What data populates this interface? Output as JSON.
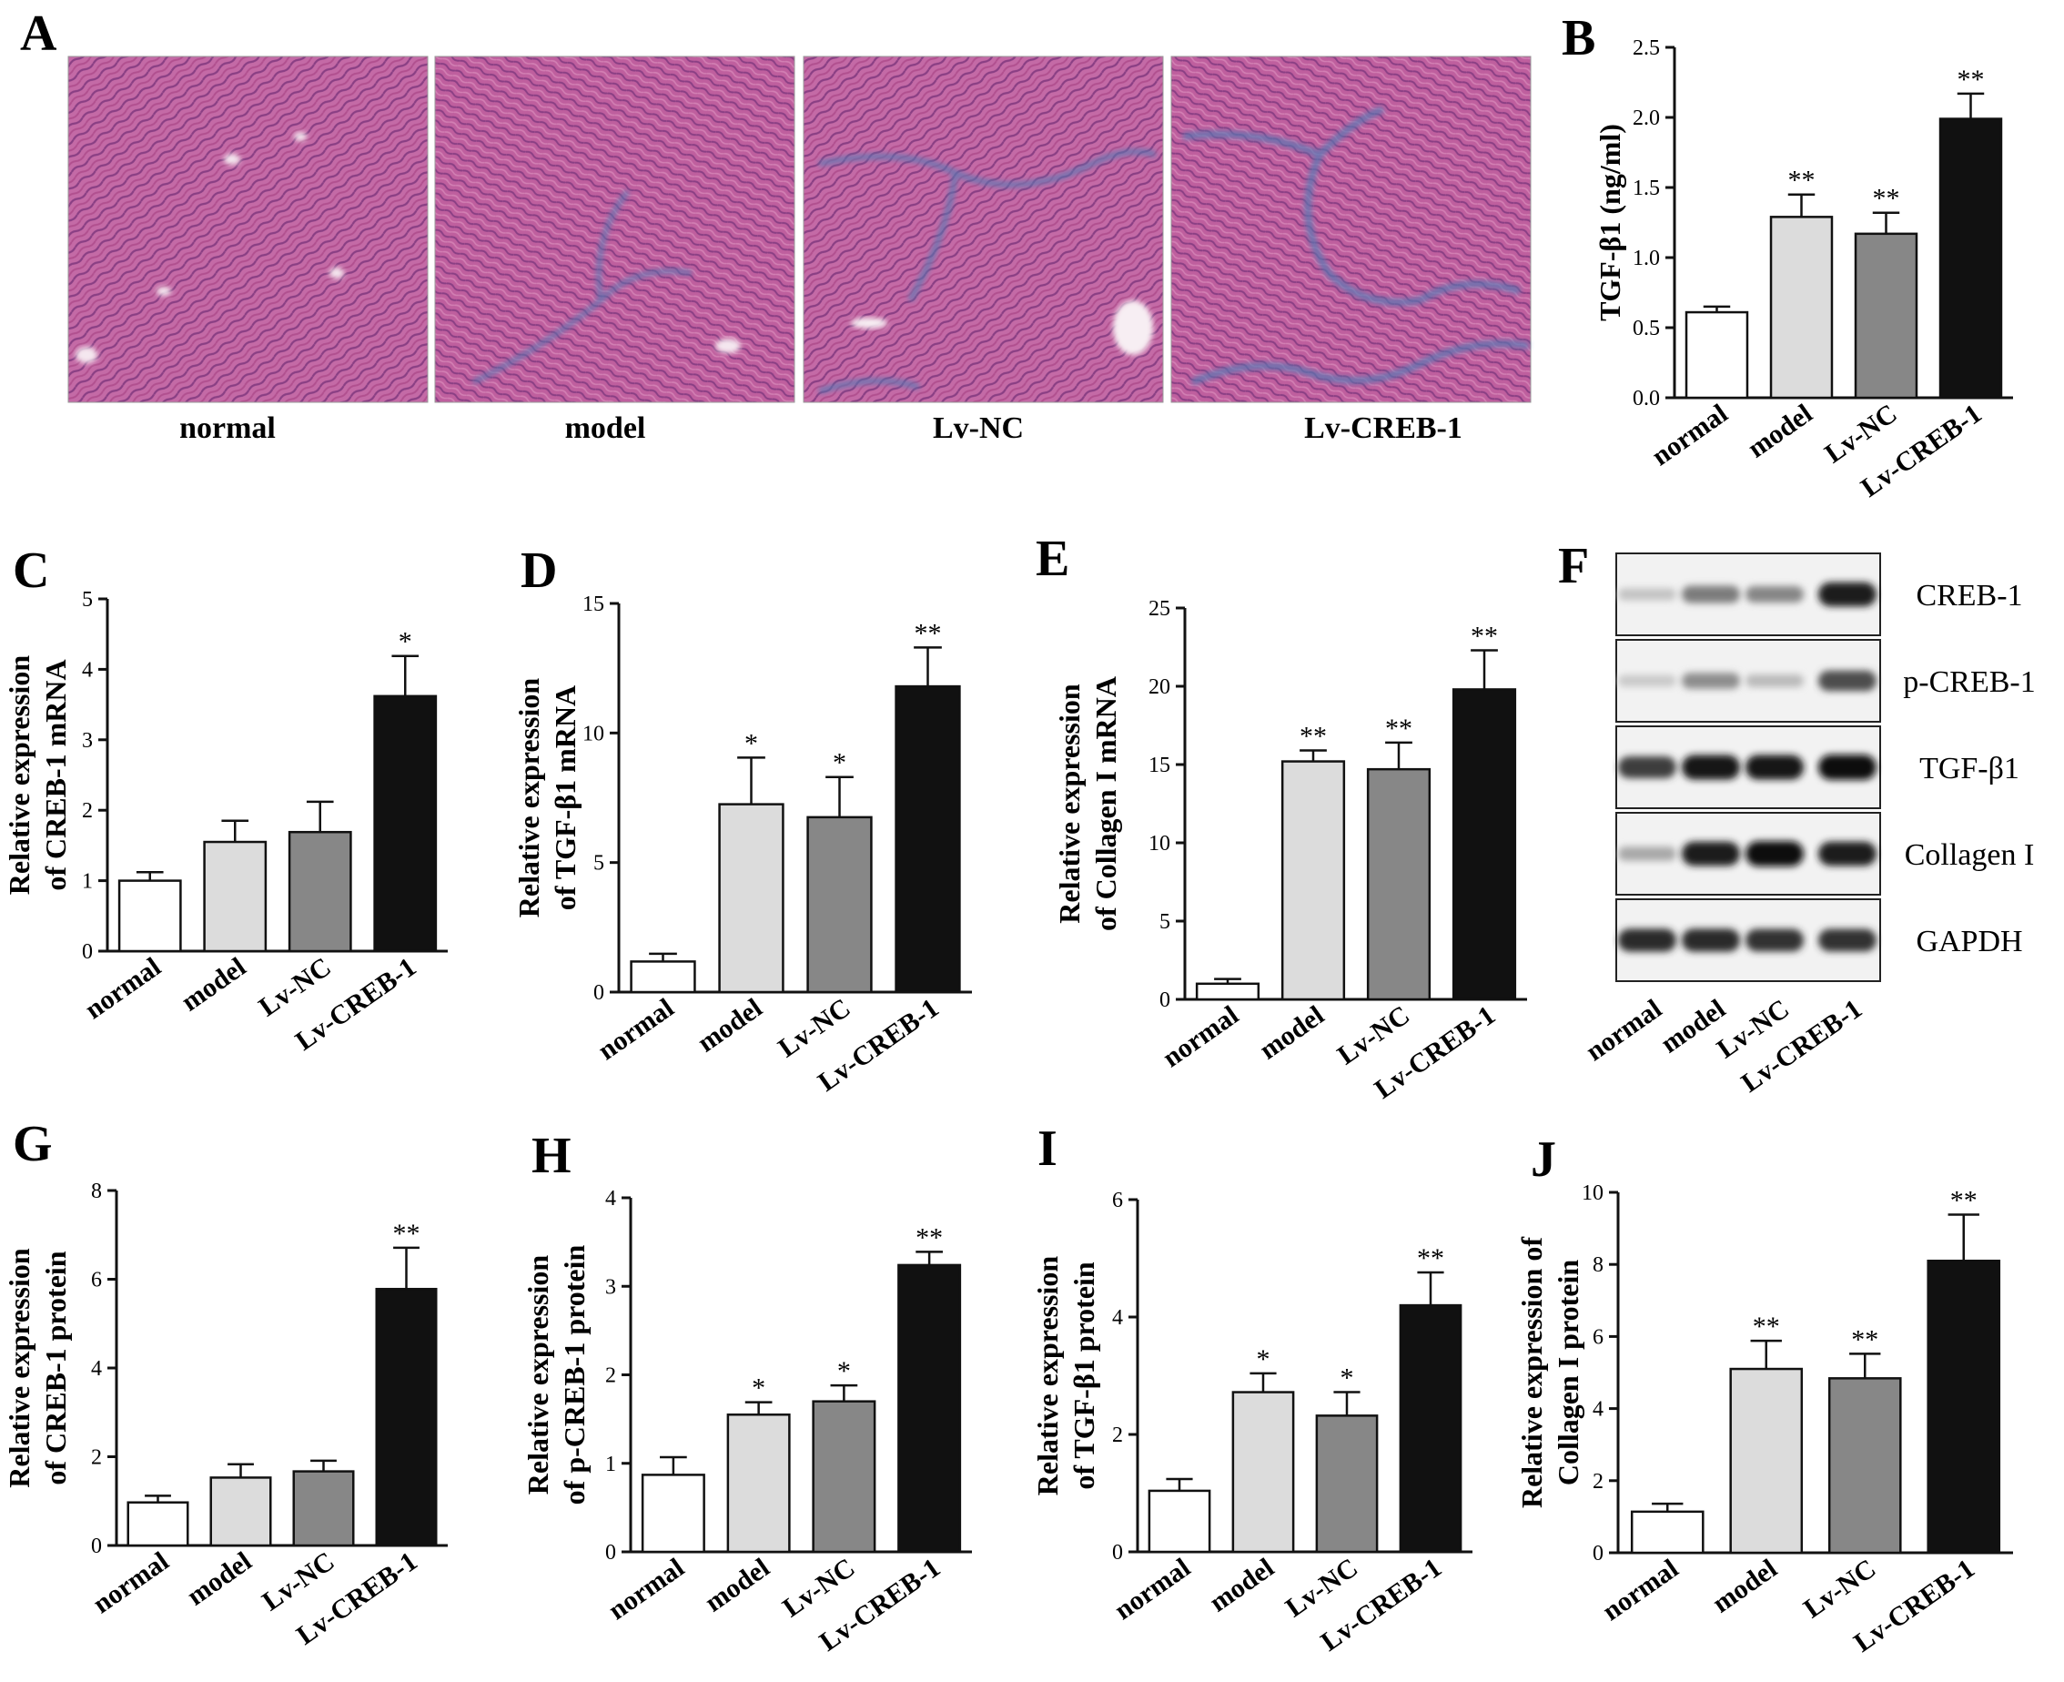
{
  "group_labels": [
    "normal",
    "model",
    "Lv-NC",
    "Lv-CREB-1"
  ],
  "bar_colors": [
    "#ffffff",
    "#dcdcdc",
    "#878787",
    "#111111"
  ],
  "micrographs": {
    "panel": "A",
    "stain_colors": {
      "tissue": "#b1508f",
      "tissue_dark": "#8a3f84",
      "background": "#c96aa5",
      "fibrosis": "#5a78b4"
    },
    "fibrosis_level": [
      0.0,
      0.35,
      0.45,
      0.8
    ]
  },
  "western_blot": {
    "panel": "F",
    "rows": [
      {
        "label": "CREB-1",
        "intensity": [
          0.18,
          0.5,
          0.45,
          0.92
        ]
      },
      {
        "label": "p-CREB-1",
        "intensity": [
          0.15,
          0.42,
          0.22,
          0.7
        ]
      },
      {
        "label": "TGF-β1",
        "intensity": [
          0.78,
          0.95,
          0.95,
          0.99
        ]
      },
      {
        "label": "Collagen I",
        "intensity": [
          0.3,
          0.92,
          0.98,
          0.92
        ]
      },
      {
        "label": "GAPDH",
        "intensity": [
          0.85,
          0.85,
          0.82,
          0.82
        ]
      }
    ]
  },
  "chart_data": [
    {
      "panel": "B",
      "type": "bar",
      "ylabel": "TGF-β1 (ng/ml)",
      "ylim": [
        0,
        2.5
      ],
      "yticks": [
        "0.0",
        "0.5",
        "1.0",
        "1.5",
        "2.0",
        "2.5"
      ],
      "categories": [
        "normal",
        "model",
        "Lv-NC",
        "Lv-CREB-1"
      ],
      "values": [
        0.61,
        1.29,
        1.17,
        1.99
      ],
      "errors": [
        0.04,
        0.16,
        0.15,
        0.18
      ],
      "significance": [
        "",
        "**",
        "**",
        "**"
      ]
    },
    {
      "panel": "C",
      "type": "bar",
      "ylabel": [
        "Relative expression",
        "of CREB-1 mRNA"
      ],
      "ylim": [
        0,
        5
      ],
      "yticks": [
        "0",
        "1",
        "2",
        "3",
        "4",
        "5"
      ],
      "categories": [
        "normal",
        "model",
        "Lv-NC",
        "Lv-CREB-1"
      ],
      "values": [
        1.0,
        1.55,
        1.69,
        3.62
      ],
      "errors": [
        0.12,
        0.3,
        0.43,
        0.57
      ],
      "significance": [
        "",
        "",
        "",
        "*"
      ]
    },
    {
      "panel": "D",
      "type": "bar",
      "ylabel": [
        "Relative expression",
        "of TGF-β1 mRNA"
      ],
      "ylim": [
        0,
        15
      ],
      "yticks": [
        "0",
        "5",
        "10",
        "15"
      ],
      "categories": [
        "normal",
        "model",
        "Lv-NC",
        "Lv-CREB-1"
      ],
      "values": [
        1.18,
        7.25,
        6.75,
        11.8
      ],
      "errors": [
        0.3,
        1.8,
        1.55,
        1.5
      ],
      "significance": [
        "",
        "*",
        "*",
        "**"
      ]
    },
    {
      "panel": "E",
      "type": "bar",
      "ylabel": [
        "Relative expression",
        "of Collagen I mRNA"
      ],
      "ylim": [
        0,
        25
      ],
      "yticks": [
        "0",
        "5",
        "10",
        "15",
        "20",
        "25"
      ],
      "categories": [
        "normal",
        "model",
        "Lv-NC",
        "Lv-CREB-1"
      ],
      "values": [
        1.0,
        15.2,
        14.7,
        19.8
      ],
      "errors": [
        0.3,
        0.7,
        1.7,
        2.5
      ],
      "significance": [
        "",
        "**",
        "**",
        "**"
      ]
    },
    {
      "panel": "G",
      "type": "bar",
      "ylabel": [
        "Relative expression",
        "of CREB-1 protein"
      ],
      "ylim": [
        0,
        8
      ],
      "yticks": [
        "0",
        "2",
        "4",
        "6",
        "8"
      ],
      "categories": [
        "normal",
        "model",
        "Lv-NC",
        "Lv-CREB-1"
      ],
      "values": [
        0.97,
        1.53,
        1.67,
        5.78
      ],
      "errors": [
        0.15,
        0.3,
        0.24,
        0.93
      ],
      "significance": [
        "",
        "",
        "",
        "**"
      ]
    },
    {
      "panel": "H",
      "type": "bar",
      "ylabel": [
        "Relative expression",
        "of p-CREB-1 protein"
      ],
      "ylim": [
        0,
        4
      ],
      "yticks": [
        "0",
        "1",
        "2",
        "3",
        "4"
      ],
      "categories": [
        "normal",
        "model",
        "Lv-NC",
        "Lv-CREB-1"
      ],
      "values": [
        0.87,
        1.55,
        1.7,
        3.24
      ],
      "errors": [
        0.2,
        0.14,
        0.18,
        0.15
      ],
      "significance": [
        "",
        "*",
        "*",
        "**"
      ]
    },
    {
      "panel": "I",
      "type": "bar",
      "ylabel": [
        "Relative expression",
        "of TGF-β1 protein"
      ],
      "ylim": [
        0,
        6
      ],
      "yticks": [
        "0",
        "2",
        "4",
        "6"
      ],
      "categories": [
        "normal",
        "model",
        "Lv-NC",
        "Lv-CREB-1"
      ],
      "values": [
        1.04,
        2.72,
        2.32,
        4.2
      ],
      "errors": [
        0.2,
        0.32,
        0.4,
        0.56
      ],
      "significance": [
        "",
        "*",
        "*",
        "**"
      ]
    },
    {
      "panel": "J",
      "type": "bar",
      "ylabel": [
        "Relative expression of",
        "Collagen I protein"
      ],
      "ylim": [
        0,
        10
      ],
      "yticks": [
        "0",
        "2",
        "4",
        "6",
        "8",
        "10"
      ],
      "categories": [
        "normal",
        "model",
        "Lv-NC",
        "Lv-CREB-1"
      ],
      "values": [
        1.14,
        5.1,
        4.84,
        8.1
      ],
      "errors": [
        0.22,
        0.78,
        0.68,
        1.28
      ],
      "significance": [
        "",
        "**",
        "**",
        "**"
      ]
    }
  ]
}
